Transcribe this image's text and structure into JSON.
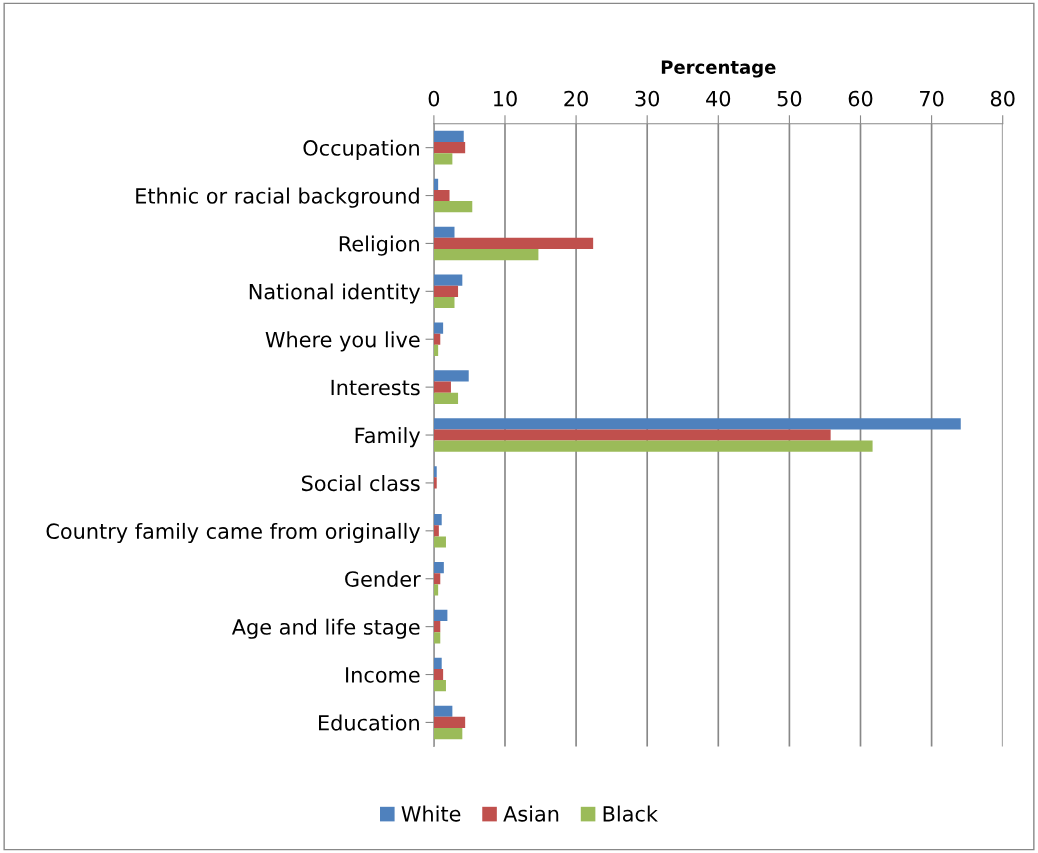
{
  "chart_data": {
    "type": "bar",
    "orientation": "horizontal",
    "xlabel": "Percentage",
    "categories": [
      "Occupation",
      "Ethnic or racial background",
      "Religion",
      "National identity",
      "Where you live",
      "Interests",
      "Family",
      "Social class",
      "Country family came from originally",
      "Gender",
      "Age and life stage",
      "Income",
      "Education"
    ],
    "series": [
      {
        "name": "White",
        "color": "#4f81bd",
        "values": [
          4.2,
          0.6,
          2.9,
          4.0,
          1.3,
          4.9,
          74.1,
          0.4,
          1.1,
          1.4,
          1.9,
          1.1,
          2.6
        ]
      },
      {
        "name": "Asian",
        "color": "#c0504d",
        "values": [
          4.4,
          2.2,
          22.4,
          3.4,
          0.9,
          2.4,
          55.8,
          0.4,
          0.7,
          0.9,
          0.9,
          1.3,
          4.4
        ]
      },
      {
        "name": "Black",
        "color": "#9bbb59",
        "values": [
          2.6,
          5.4,
          14.7,
          2.9,
          0.6,
          3.4,
          61.7,
          0,
          1.7,
          0.6,
          0.9,
          1.7,
          4.0
        ]
      }
    ],
    "xlim": [
      0,
      80
    ],
    "xticks": [
      0,
      10,
      20,
      30,
      40,
      50,
      60,
      70,
      80
    ],
    "grid": "x",
    "legend": "bottom"
  }
}
